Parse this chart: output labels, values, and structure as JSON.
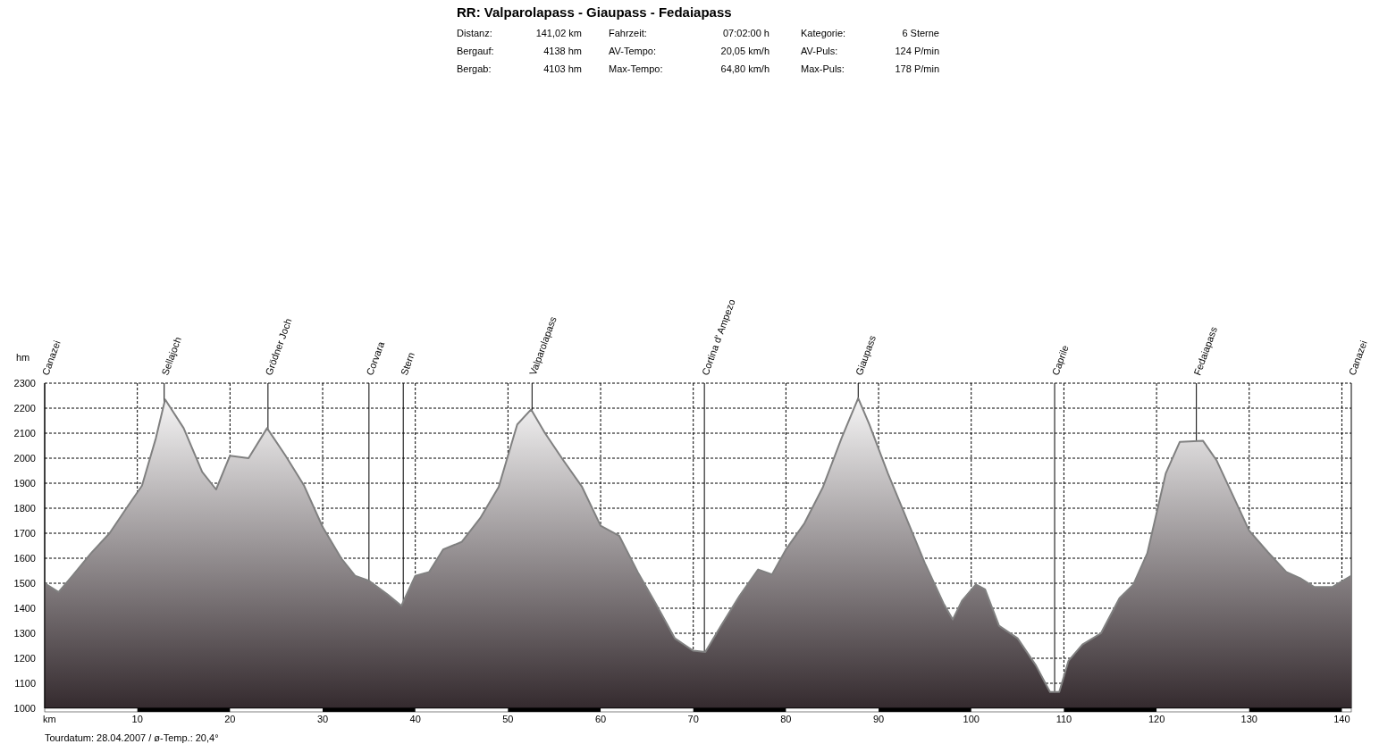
{
  "chart_data": {
    "type": "area",
    "title": "RR: Valparolapass - Giaupass - Fedaiapass",
    "xlabel": "km",
    "ylabel": "hm",
    "annotations": [
      "Distanz:",
      "141,02 km",
      "Fahrzeit:",
      "07:02:00 h",
      "Kategorie:",
      "6 Sterne",
      "Bergauf:",
      "4138 hm",
      "AV-Tempo:",
      "20,05 km/h",
      "AV-Puls:",
      "124 P/min",
      "Bergab:",
      "4103 hm",
      "Max-Tempo:",
      "64,80 km/h",
      "Max-Puls:",
      "178 P/min",
      "Tourdatum: 28.04.2007  /  ø-Temp.: 20,4°"
    ],
    "xlim": [
      0,
      141.02
    ],
    "xticks": [
      10,
      20,
      30,
      40,
      50,
      60,
      70,
      80,
      90,
      100,
      110,
      120,
      130,
      140
    ],
    "ylim": [
      1000,
      2300
    ],
    "yticks": [
      1000,
      1100,
      1200,
      1300,
      1400,
      1500,
      1600,
      1700,
      1800,
      1900,
      2000,
      2100,
      2200,
      2300
    ],
    "grid": true,
    "line_style": "solid",
    "series": [
      {
        "color": "#808080",
        "x": [
          0,
          1.5,
          3,
          5,
          7,
          9,
          10.5,
          12,
          13,
          15,
          17,
          18.5,
          20,
          22,
          24,
          26,
          28,
          30,
          32,
          33.5,
          35,
          37,
          38.5,
          40,
          41.5,
          43,
          45,
          47,
          49,
          51,
          52.5,
          54,
          56,
          58,
          60,
          62,
          64,
          66,
          68,
          70,
          71.3,
          73,
          75,
          77,
          78.5,
          80,
          82,
          84,
          86,
          87.8,
          89,
          91,
          93,
          95,
          97,
          98,
          99,
          100.5,
          101.5,
          103,
          105,
          107,
          108.5,
          109.5,
          110.5,
          112,
          114,
          116,
          117.5,
          119,
          121,
          122.5,
          125,
          126.5,
          128,
          130,
          132,
          134,
          135.5,
          137,
          139,
          141.02
        ],
        "values": [
          1500,
          1465,
          1530,
          1620,
          1700,
          1810,
          1890,
          2080,
          2235,
          2120,
          1945,
          1875,
          2010,
          2000,
          2120,
          2010,
          1890,
          1725,
          1600,
          1530,
          1510,
          1455,
          1410,
          1530,
          1545,
          1635,
          1665,
          1760,
          1885,
          2135,
          2195,
          2100,
          1990,
          1885,
          1730,
          1690,
          1545,
          1415,
          1280,
          1230,
          1225,
          1330,
          1450,
          1555,
          1535,
          1635,
          1740,
          1885,
          2080,
          2240,
          2135,
          1940,
          1760,
          1580,
          1420,
          1355,
          1430,
          1495,
          1475,
          1330,
          1280,
          1170,
          1065,
          1065,
          1190,
          1255,
          1300,
          1440,
          1495,
          1620,
          1940,
          2065,
          2070,
          1990,
          1870,
          1710,
          1625,
          1545,
          1520,
          1485,
          1485,
          1530
        ]
      }
    ],
    "ref_lines": [
      {
        "axis": "x",
        "value": 0,
        "label": "Canazei",
        "color": "#000000"
      },
      {
        "axis": "x",
        "value": 12.9,
        "label": "Sellajoch",
        "color": "#000000"
      },
      {
        "axis": "x",
        "value": 24.1,
        "label": "Grödner Joch",
        "color": "#000000"
      },
      {
        "axis": "x",
        "value": 35,
        "label": "Corvara",
        "color": "#000000"
      },
      {
        "axis": "x",
        "value": 38.7,
        "label": "Stern",
        "color": "#000000"
      },
      {
        "axis": "x",
        "value": 52.6,
        "label": "Valparolapass",
        "color": "#000000"
      },
      {
        "axis": "x",
        "value": 71.2,
        "label": "Cortina d' Ampezo",
        "color": "#000000"
      },
      {
        "axis": "x",
        "value": 87.8,
        "label": "Giaupass",
        "color": "#000000"
      },
      {
        "axis": "x",
        "value": 109,
        "label": "Caprile",
        "color": "#000000"
      },
      {
        "axis": "x",
        "value": 124.3,
        "label": "Fedaiapass",
        "color": "#000000"
      },
      {
        "axis": "x",
        "value": 141.02,
        "label": "Canazei",
        "color": "#000000"
      }
    ]
  }
}
